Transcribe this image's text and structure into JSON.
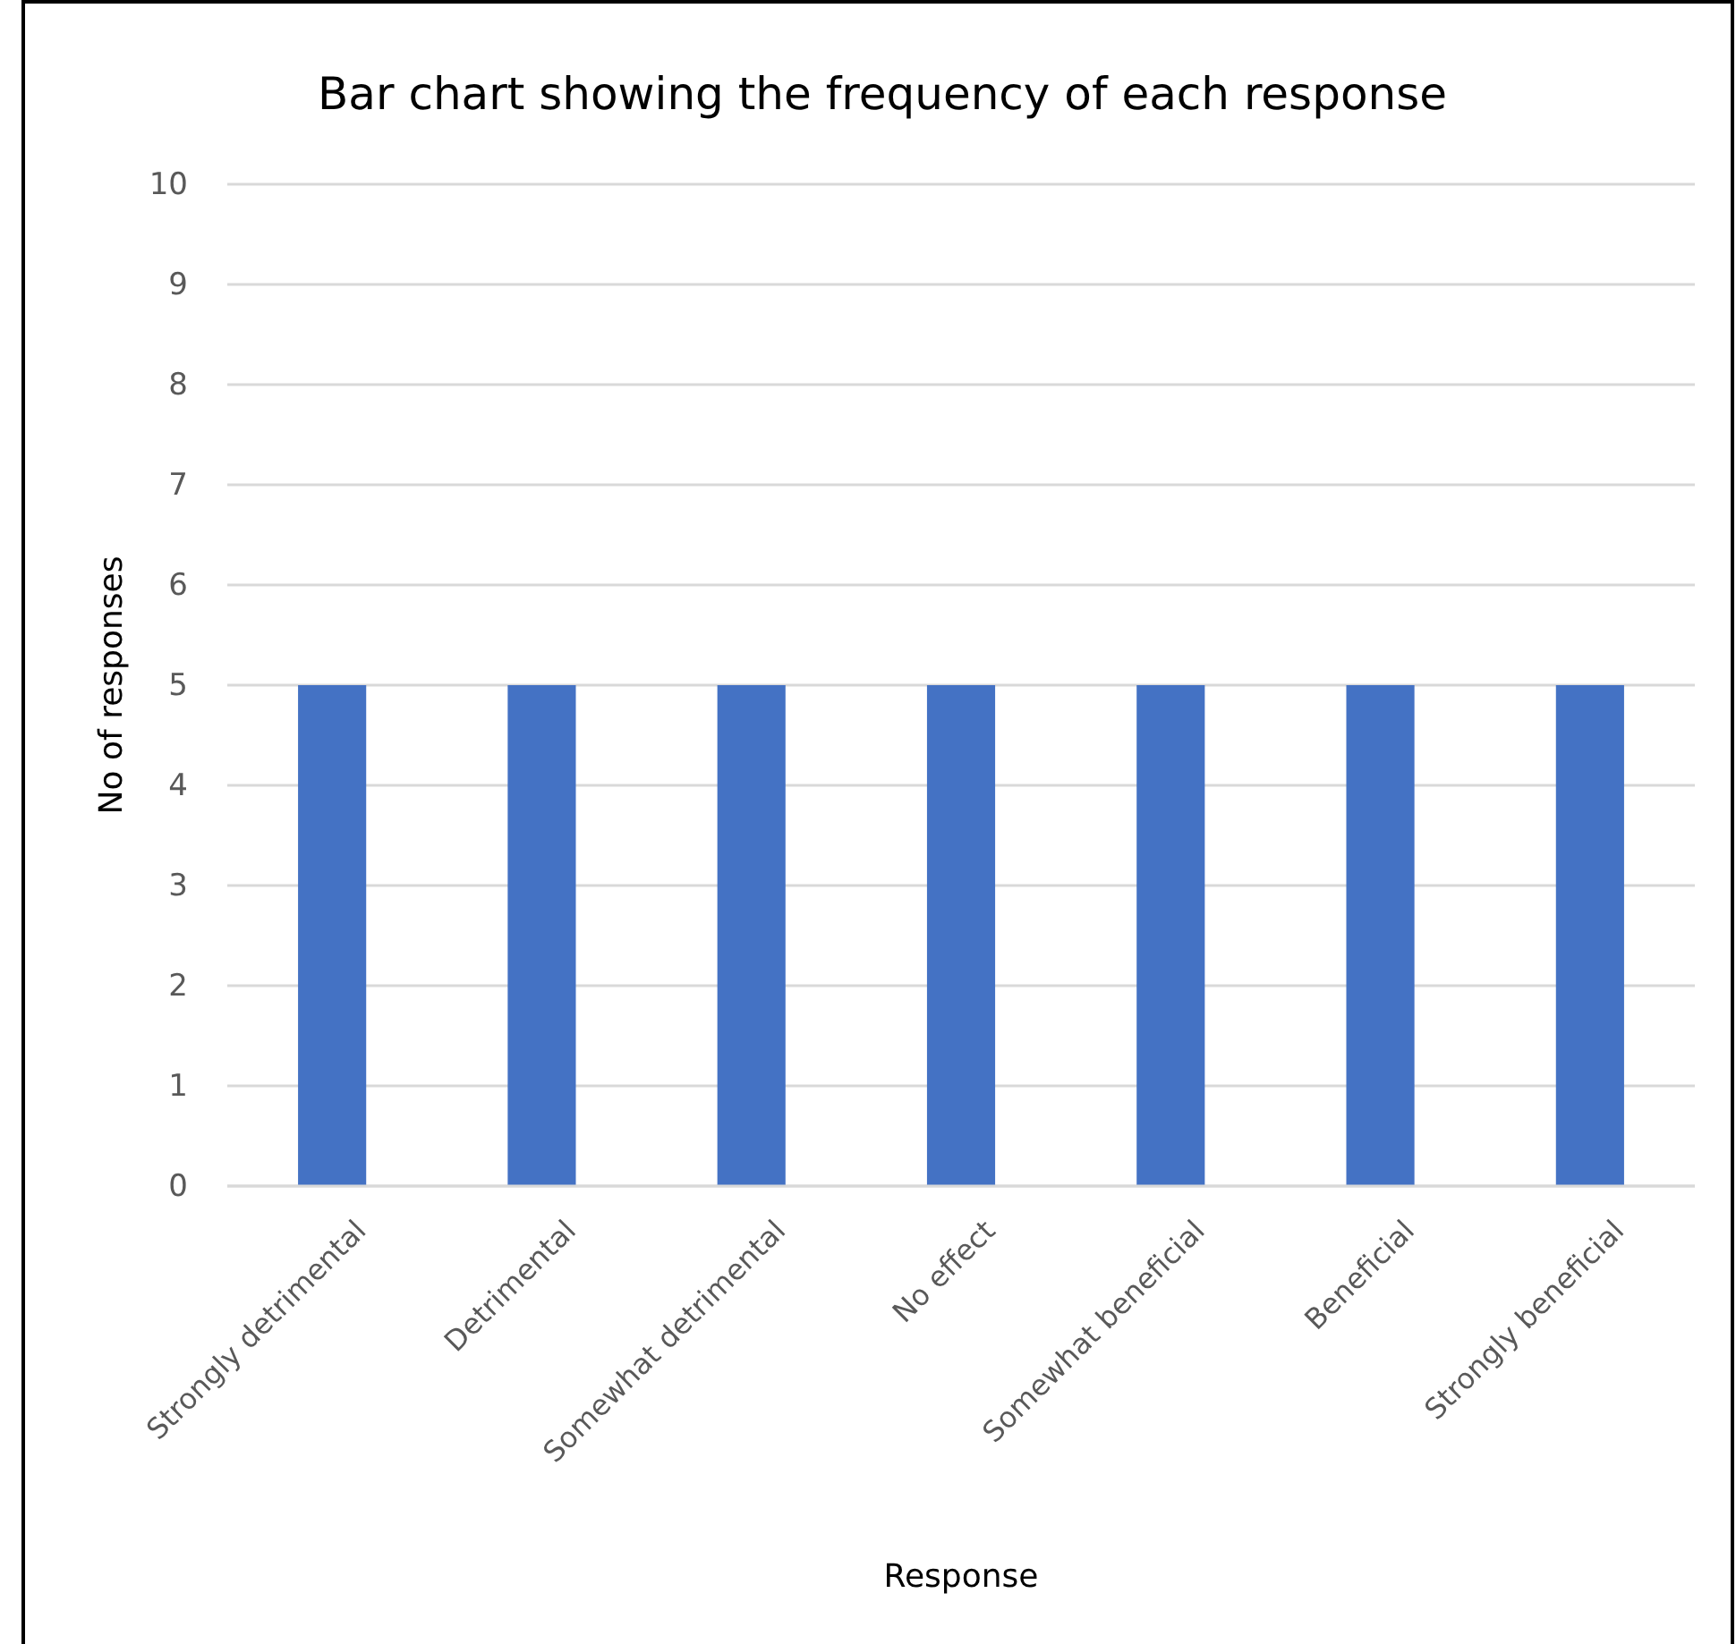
{
  "chart_data": {
    "type": "bar",
    "title": "Bar chart showing the frequency of each response",
    "xlabel": "Response",
    "ylabel": "No of responses",
    "categories": [
      "Strongly detrimental",
      "Detrimental",
      "Somewhat detrimental",
      "No effect",
      "Somewhat beneficial",
      "Beneficial",
      "Strongly beneficial"
    ],
    "values": [
      5,
      5,
      5,
      5,
      5,
      5,
      5
    ],
    "color": "#4472c4",
    "ylim": [
      0,
      10
    ],
    "yticks": [
      0,
      1,
      2,
      3,
      4,
      5,
      6,
      7,
      8,
      9,
      10
    ],
    "grid": "y"
  }
}
